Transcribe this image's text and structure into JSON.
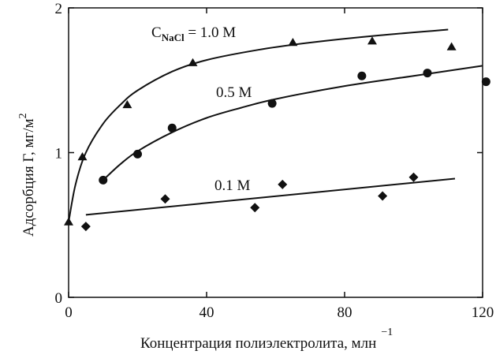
{
  "chart_data": {
    "type": "scatter",
    "xlabel": "Концентрация полиэлектролита, млн",
    "xlabel_superscript": "−1",
    "ylabel": "Адсорбция Γ, мг/м",
    "ylabel_superscript": "2",
    "xlim": [
      0,
      120
    ],
    "ylim": [
      0,
      2
    ],
    "x_ticks": [
      0,
      40,
      80,
      120
    ],
    "x_tick_labels": [
      "0",
      "40",
      "80",
      "120"
    ],
    "y_ticks": [
      0,
      1,
      2
    ],
    "y_tick_labels": [
      "0",
      "1",
      "2"
    ],
    "grid": false,
    "series": [
      {
        "label_main": "C",
        "label_sub": "NaCl",
        "label_rest": " = 1.0 M",
        "marker": "triangle",
        "points": [
          {
            "x": 0,
            "y": 0.52
          },
          {
            "x": 4,
            "y": 0.97
          },
          {
            "x": 17,
            "y": 1.33
          },
          {
            "x": 36,
            "y": 1.62
          },
          {
            "x": 65,
            "y": 1.76
          },
          {
            "x": 88,
            "y": 1.77
          },
          {
            "x": 111,
            "y": 1.73
          }
        ],
        "fit_curve": [
          {
            "x": 0,
            "y": 0.52
          },
          {
            "x": 2,
            "y": 0.78
          },
          {
            "x": 5,
            "y": 1.0
          },
          {
            "x": 10,
            "y": 1.2
          },
          {
            "x": 15,
            "y": 1.33
          },
          {
            "x": 20,
            "y": 1.43
          },
          {
            "x": 30,
            "y": 1.56
          },
          {
            "x": 40,
            "y": 1.64
          },
          {
            "x": 55,
            "y": 1.71
          },
          {
            "x": 70,
            "y": 1.76
          },
          {
            "x": 90,
            "y": 1.81
          },
          {
            "x": 110,
            "y": 1.85
          }
        ]
      },
      {
        "label_main": "0.5 M",
        "label_sub": "",
        "label_rest": "",
        "marker": "circle",
        "points": [
          {
            "x": 10,
            "y": 0.81
          },
          {
            "x": 20,
            "y": 0.99
          },
          {
            "x": 30,
            "y": 1.17
          },
          {
            "x": 59,
            "y": 1.34
          },
          {
            "x": 85,
            "y": 1.53
          },
          {
            "x": 104,
            "y": 1.55
          },
          {
            "x": 121,
            "y": 1.49
          }
        ],
        "fit_curve": [
          {
            "x": 10,
            "y": 0.81
          },
          {
            "x": 15,
            "y": 0.92
          },
          {
            "x": 20,
            "y": 1.01
          },
          {
            "x": 30,
            "y": 1.14
          },
          {
            "x": 40,
            "y": 1.24
          },
          {
            "x": 50,
            "y": 1.31
          },
          {
            "x": 60,
            "y": 1.37
          },
          {
            "x": 80,
            "y": 1.46
          },
          {
            "x": 100,
            "y": 1.53
          },
          {
            "x": 120,
            "y": 1.6
          }
        ]
      },
      {
        "label_main": "0.1 M",
        "label_sub": "",
        "label_rest": "",
        "marker": "diamond",
        "points": [
          {
            "x": 5,
            "y": 0.49
          },
          {
            "x": 28,
            "y": 0.68
          },
          {
            "x": 54,
            "y": 0.62
          },
          {
            "x": 62,
            "y": 0.78
          },
          {
            "x": 91,
            "y": 0.7
          },
          {
            "x": 100,
            "y": 0.83
          }
        ],
        "fit_curve": [
          {
            "x": 5,
            "y": 0.57
          },
          {
            "x": 112,
            "y": 0.82
          }
        ]
      }
    ]
  }
}
